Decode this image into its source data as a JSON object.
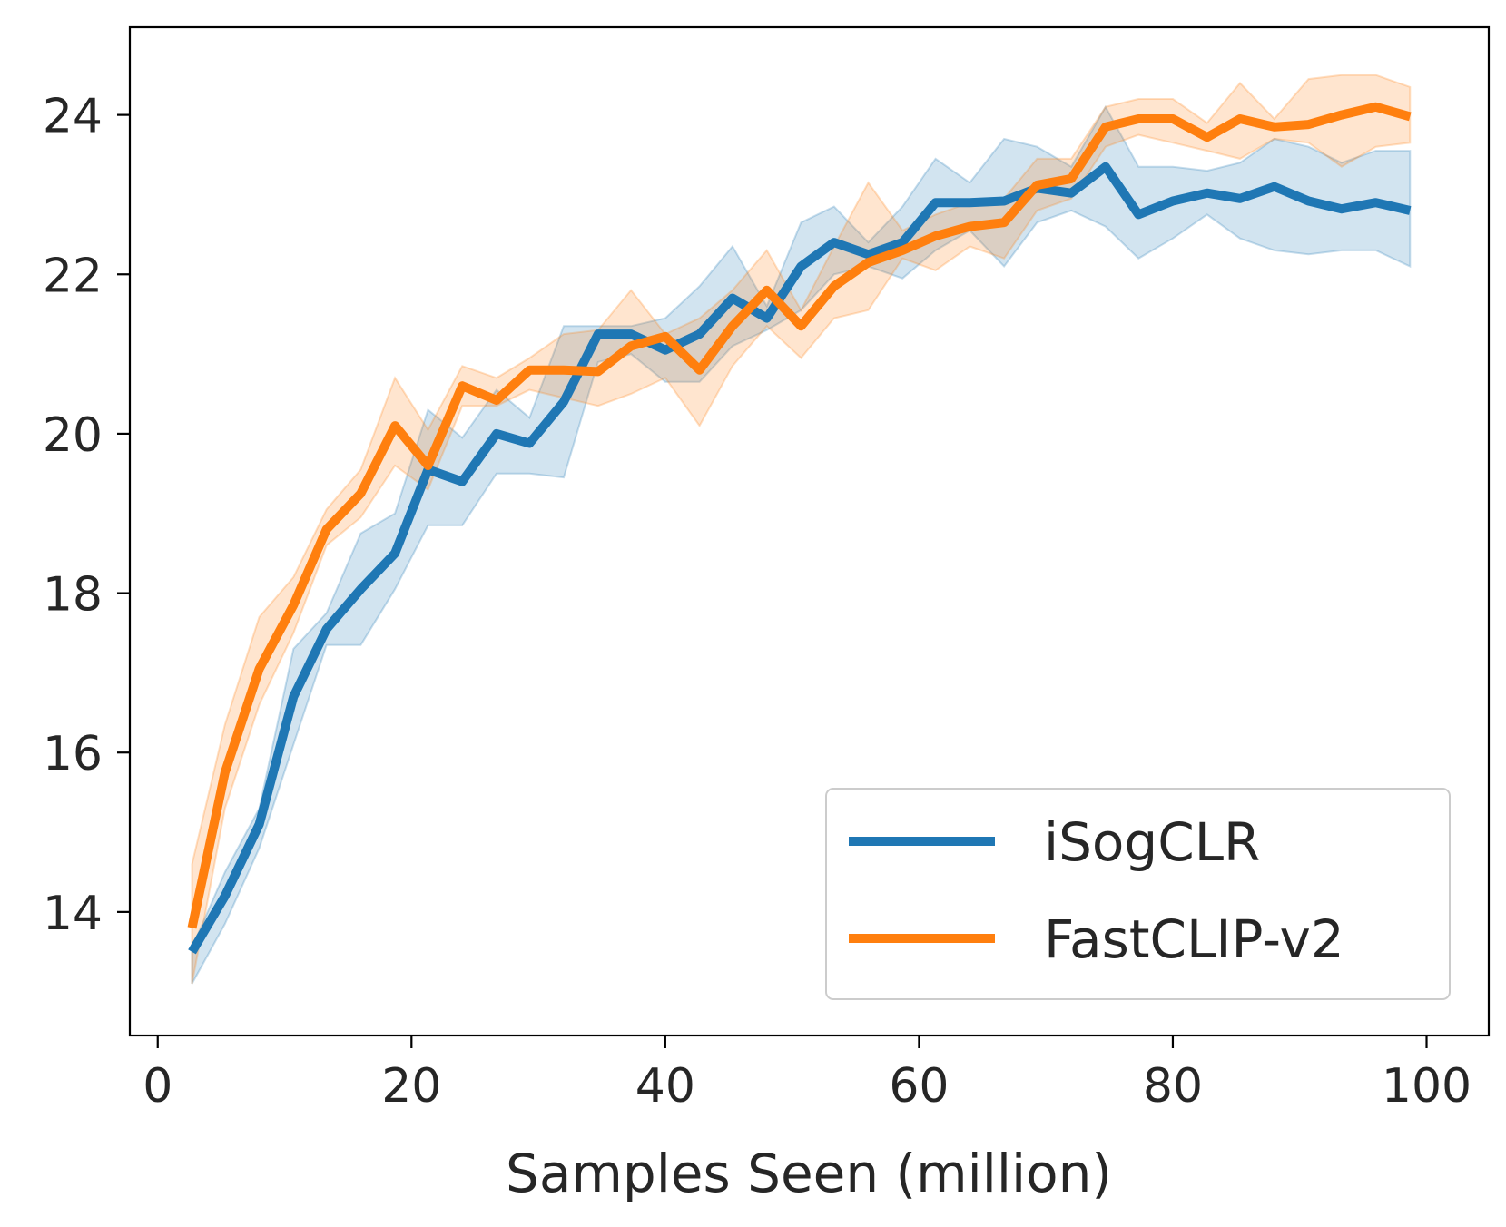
{
  "chart_data": {
    "type": "line",
    "xlabel": "Samples Seen (million)",
    "ylabel": "",
    "xlim": [
      -2.2,
      104.9
    ],
    "ylim": [
      12.45,
      25.1
    ],
    "xticks": [
      0,
      20,
      40,
      60,
      80,
      100
    ],
    "yticks": [
      14,
      16,
      18,
      20,
      22,
      24
    ],
    "grid": false,
    "legend_position": "bottom-right",
    "x": [
      2.7,
      5.3,
      8.0,
      10.7,
      13.3,
      16.0,
      18.7,
      21.3,
      24.0,
      26.7,
      29.3,
      32.0,
      34.7,
      37.3,
      40.0,
      42.7,
      45.3,
      48.0,
      50.7,
      53.3,
      56.0,
      58.7,
      61.3,
      64.0,
      66.7,
      69.3,
      72.0,
      74.7,
      77.3,
      80.0,
      82.7,
      85.3,
      88.0,
      90.7,
      93.3,
      96.0,
      98.7
    ],
    "series": [
      {
        "name": "iSogCLR",
        "color": "#1f77b4",
        "values": [
          13.5,
          14.2,
          15.1,
          16.7,
          17.55,
          18.05,
          18.5,
          19.55,
          19.4,
          20.0,
          19.88,
          20.4,
          21.25,
          21.25,
          21.05,
          21.25,
          21.7,
          21.45,
          22.1,
          22.4,
          22.25,
          22.4,
          22.9,
          22.9,
          22.92,
          23.08,
          23.02,
          23.35,
          22.75,
          22.92,
          23.02,
          22.95,
          23.1,
          22.92,
          22.82,
          22.9,
          22.8
        ],
        "lower": [
          13.1,
          13.85,
          14.8,
          16.1,
          17.35,
          17.35,
          18.05,
          18.85,
          18.85,
          19.5,
          19.5,
          19.45,
          20.9,
          21.0,
          20.65,
          20.65,
          21.1,
          21.3,
          21.55,
          22.0,
          22.1,
          21.95,
          22.3,
          22.55,
          22.1,
          22.65,
          22.8,
          22.6,
          22.2,
          22.45,
          22.75,
          22.45,
          22.3,
          22.25,
          22.3,
          22.3,
          22.1
        ],
        "upper": [
          13.55,
          14.5,
          15.3,
          17.3,
          17.75,
          18.75,
          19.0,
          20.3,
          19.95,
          20.55,
          20.2,
          21.35,
          21.35,
          21.35,
          21.45,
          21.85,
          22.35,
          21.6,
          22.65,
          22.85,
          22.4,
          22.85,
          23.45,
          23.15,
          23.7,
          23.6,
          23.35,
          24.1,
          23.35,
          23.35,
          23.3,
          23.4,
          23.7,
          23.6,
          23.4,
          23.55,
          23.55
        ]
      },
      {
        "name": "FastCLIP-v2",
        "color": "#ff7f0e",
        "values": [
          13.8,
          15.75,
          17.05,
          17.85,
          18.8,
          19.25,
          20.1,
          19.6,
          20.6,
          20.42,
          20.8,
          20.8,
          20.78,
          21.1,
          21.22,
          20.8,
          21.35,
          21.8,
          21.35,
          21.85,
          22.15,
          22.3,
          22.48,
          22.6,
          22.65,
          23.12,
          23.2,
          23.85,
          23.95,
          23.95,
          23.72,
          23.95,
          23.85,
          23.88,
          24.0,
          24.1,
          23.98
        ],
        "lower": [
          13.1,
          15.3,
          16.6,
          17.5,
          18.6,
          18.95,
          19.6,
          19.3,
          20.35,
          20.35,
          20.55,
          20.45,
          20.35,
          20.5,
          20.7,
          20.1,
          20.85,
          21.35,
          20.95,
          21.45,
          21.55,
          22.2,
          22.05,
          22.35,
          22.2,
          22.8,
          22.95,
          23.6,
          23.75,
          23.65,
          23.55,
          23.45,
          23.7,
          23.65,
          23.35,
          23.6,
          23.65
        ],
        "upper": [
          14.6,
          16.35,
          17.7,
          18.2,
          19.05,
          19.55,
          20.7,
          20.05,
          20.85,
          20.7,
          20.95,
          21.25,
          21.3,
          21.8,
          21.25,
          21.45,
          21.8,
          22.3,
          21.55,
          22.35,
          23.15,
          22.55,
          22.75,
          22.9,
          22.95,
          23.45,
          23.45,
          24.1,
          24.2,
          24.2,
          23.9,
          24.4,
          23.95,
          24.45,
          24.5,
          24.5,
          24.35
        ]
      }
    ]
  }
}
